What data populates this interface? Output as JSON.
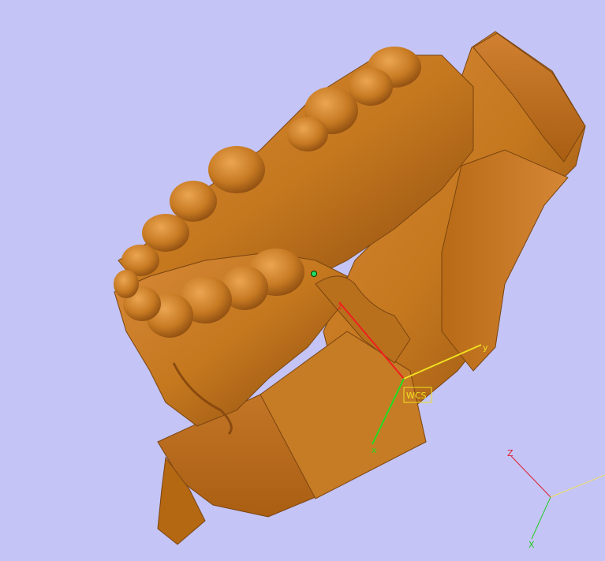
{
  "viewport": {
    "background": "#c4c4f6",
    "model_color": "#c5781e",
    "model_shade": "#8a4a0f",
    "model_highlight": "#e7a04a"
  },
  "wcs": {
    "label": "WCS",
    "x_label": "x",
    "y_label": "y",
    "z_label": "z",
    "x_color": "#22dd22",
    "y_color": "#f0e020",
    "z_color": "#ee2020"
  },
  "triad": {
    "x_label": "X",
    "y_label": "Y",
    "z_label": "Z",
    "x_color": "#22cc22",
    "y_color": "#f2e060",
    "z_color": "#dd2233"
  }
}
